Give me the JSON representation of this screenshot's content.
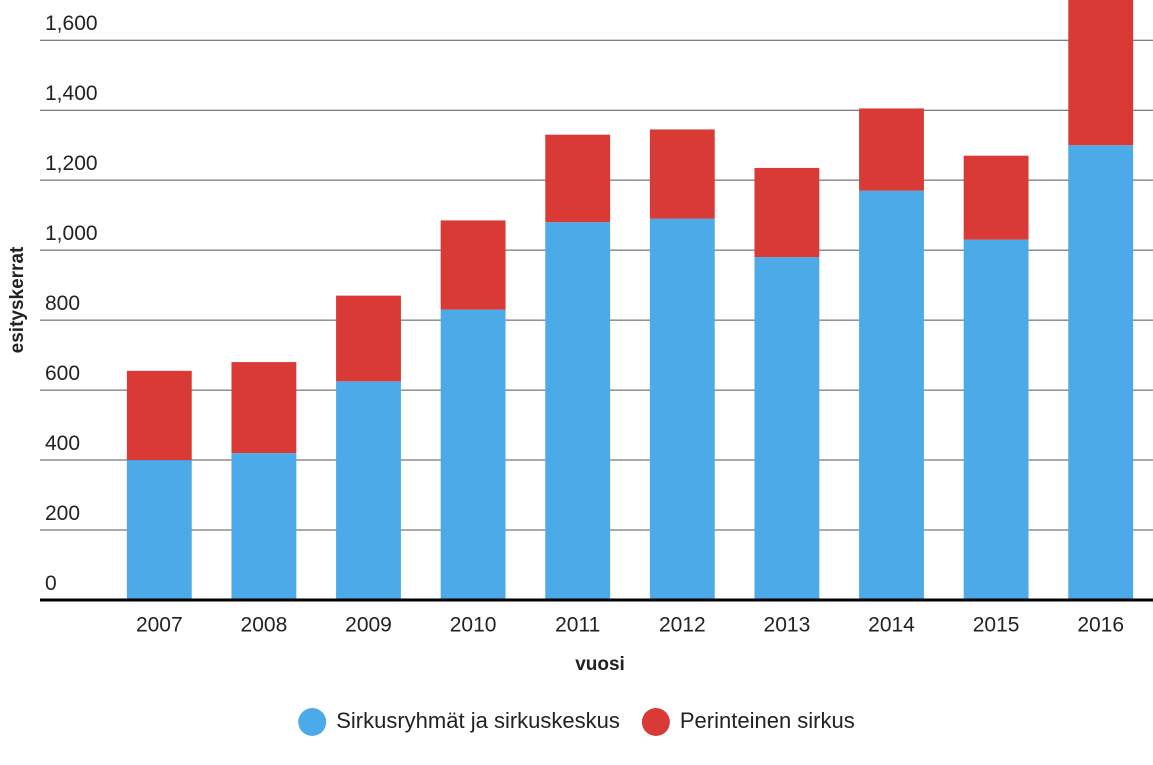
{
  "chart_data": {
    "type": "bar",
    "stacked": true,
    "categories": [
      "2007",
      "2008",
      "2009",
      "2010",
      "2011",
      "2012",
      "2013",
      "2014",
      "2015",
      "2016"
    ],
    "series": [
      {
        "name": "Sirkusryhmät ja sirkuskeskus",
        "color": "#4daae8",
        "values": [
          400,
          420,
          625,
          830,
          1080,
          1090,
          980,
          1170,
          1030,
          1300
        ]
      },
      {
        "name": "Perinteinen sirkus",
        "color": "#d93a35",
        "values": [
          255,
          260,
          245,
          255,
          250,
          255,
          255,
          235,
          240,
          415
        ]
      }
    ],
    "xlabel": "vuosi",
    "ylabel": "esityskerrat",
    "ylim": [
      0,
      1715
    ],
    "yticks": [
      0,
      200,
      400,
      600,
      800,
      {
        "value": 1000,
        "label": "1,000"
      },
      {
        "value": 1200,
        "label": "1,200"
      },
      {
        "value": 1400,
        "label": "1,400"
      },
      {
        "value": 1600,
        "label": "1,600"
      }
    ],
    "grid": true,
    "legend": "bottom"
  }
}
